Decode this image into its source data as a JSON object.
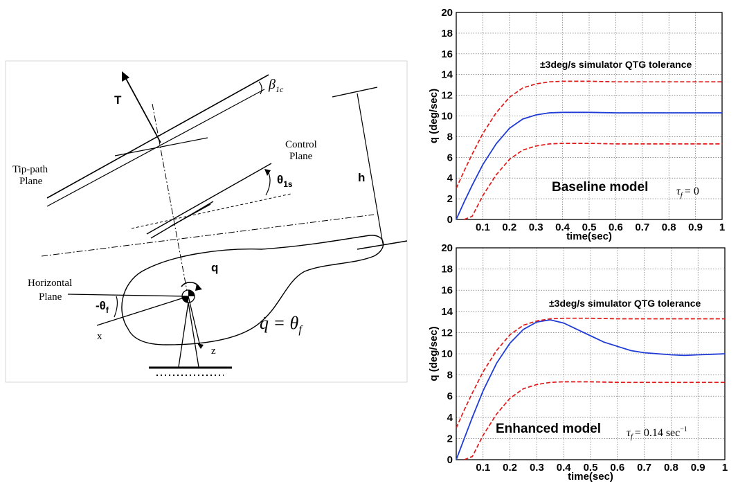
{
  "diagram": {
    "labels": {
      "thrust": "T",
      "beta": "β",
      "beta_sub": "1c",
      "control_plane_1": "Control",
      "control_plane_2": "Plane",
      "tip_path_1": "Tip-path",
      "tip_path_2": "Plane",
      "theta": "θ",
      "theta_sub": "1s",
      "height": "h",
      "pitch_rate": "q",
      "horizontal_1": "Horizontal",
      "horizontal_2": "Plane",
      "neg_theta": "-θ",
      "neg_theta_sub": "f",
      "x_axis": "x",
      "z_axis": "z",
      "equation": "q̇ = θ",
      "equation_sub": "f"
    }
  },
  "chart_data": [
    {
      "type": "line",
      "title": "",
      "xlabel": "time(sec)",
      "ylabel": "q (deg/sec)",
      "xlim": [
        0,
        1
      ],
      "ylim": [
        0,
        20
      ],
      "xticks": [
        "0.1",
        "0.2",
        "0.3",
        "0.4",
        "0.5",
        "0.6",
        "0.7",
        "0.8",
        "0.9",
        "1"
      ],
      "yticks": [
        "0",
        "2",
        "4",
        "6",
        "8",
        "10",
        "12",
        "14",
        "16",
        "18",
        "20"
      ],
      "grid": true,
      "annotation": "±3deg/s simulator QTG tolerance",
      "model_label": "Baseline model",
      "tau_label": "τ",
      "tau_sub": "f",
      "tau_value": "= 0",
      "colors": {
        "response": "#1f3bd6",
        "tolerance": "#e01818"
      },
      "series": [
        {
          "role": "response",
          "x": [
            0,
            0.03,
            0.06,
            0.1,
            0.15,
            0.2,
            0.25,
            0.3,
            0.35,
            0.4,
            0.5,
            0.6,
            0.7,
            0.8,
            0.9,
            1.0
          ],
          "y": [
            0,
            1.7,
            3.3,
            5.3,
            7.3,
            8.8,
            9.7,
            10.1,
            10.3,
            10.35,
            10.35,
            10.3,
            10.3,
            10.3,
            10.3,
            10.3
          ]
        },
        {
          "role": "upper-tolerance",
          "x": [
            0,
            0.03,
            0.06,
            0.1,
            0.15,
            0.2,
            0.25,
            0.3,
            0.35,
            0.4,
            0.5,
            0.6,
            0.7,
            0.8,
            0.9,
            1.0
          ],
          "y": [
            3,
            4.7,
            6.3,
            8.3,
            10.3,
            11.8,
            12.7,
            13.1,
            13.3,
            13.35,
            13.35,
            13.3,
            13.3,
            13.3,
            13.3,
            13.3
          ]
        },
        {
          "role": "lower-tolerance",
          "x": [
            0.03,
            0.06,
            0.1,
            0.15,
            0.2,
            0.25,
            0.3,
            0.35,
            0.4,
            0.5,
            0.6,
            0.7,
            0.8,
            0.9,
            1.0
          ],
          "y": [
            0,
            0.3,
            2.3,
            4.3,
            5.8,
            6.7,
            7.1,
            7.3,
            7.35,
            7.35,
            7.3,
            7.3,
            7.3,
            7.3,
            7.3
          ]
        }
      ]
    },
    {
      "type": "line",
      "title": "",
      "xlabel": "time(sec)",
      "ylabel": "q (deg/sec)",
      "xlim": [
        0,
        1
      ],
      "ylim": [
        0,
        20
      ],
      "xticks": [
        "0.1",
        "0.2",
        "0.3",
        "0.4",
        "0.5",
        "0.6",
        "0.7",
        "0.8",
        "0.9",
        "1"
      ],
      "yticks": [
        "0",
        "2",
        "4",
        "6",
        "8",
        "10",
        "12",
        "14",
        "16",
        "18",
        "20"
      ],
      "grid": true,
      "annotation": "±3deg/s simulator QTG tolerance",
      "model_label": "Enhanced model",
      "tau_label": "τ",
      "tau_sub": "f",
      "tau_value": "= 0.14 sec",
      "tau_exp": "−1",
      "colors": {
        "response": "#1f3bd6",
        "tolerance": "#e01818"
      },
      "series": [
        {
          "role": "response",
          "x": [
            0,
            0.03,
            0.06,
            0.1,
            0.15,
            0.2,
            0.25,
            0.3,
            0.35,
            0.4,
            0.45,
            0.5,
            0.55,
            0.6,
            0.65,
            0.7,
            0.75,
            0.8,
            0.85,
            0.9,
            0.95,
            1.0
          ],
          "y": [
            0,
            2.0,
            4.0,
            6.5,
            9.1,
            11.0,
            12.3,
            13.0,
            13.2,
            12.9,
            12.3,
            11.7,
            11.1,
            10.7,
            10.3,
            10.1,
            10.0,
            9.9,
            9.85,
            9.9,
            9.95,
            10.0
          ]
        },
        {
          "role": "upper-tolerance",
          "x": [
            0,
            0.03,
            0.06,
            0.1,
            0.15,
            0.2,
            0.25,
            0.3,
            0.35,
            0.4,
            0.5,
            0.6,
            0.7,
            0.8,
            0.9,
            1.0
          ],
          "y": [
            3,
            4.7,
            6.3,
            8.3,
            10.3,
            11.8,
            12.7,
            13.1,
            13.3,
            13.35,
            13.35,
            13.3,
            13.3,
            13.3,
            13.3,
            13.3
          ]
        },
        {
          "role": "lower-tolerance",
          "x": [
            0.03,
            0.06,
            0.1,
            0.15,
            0.2,
            0.25,
            0.3,
            0.35,
            0.4,
            0.5,
            0.6,
            0.7,
            0.8,
            0.9,
            1.0
          ],
          "y": [
            0,
            0.3,
            2.3,
            4.3,
            5.8,
            6.7,
            7.1,
            7.3,
            7.35,
            7.35,
            7.3,
            7.3,
            7.3,
            7.3,
            7.3
          ]
        }
      ]
    }
  ]
}
